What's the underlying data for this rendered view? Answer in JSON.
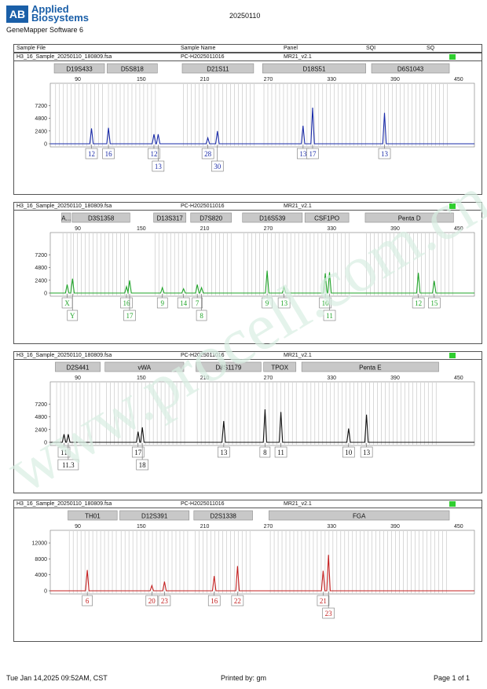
{
  "branding": {
    "logo_mark": "AB",
    "logo_line1": "Applied",
    "logo_line2": "Biosystems",
    "software": "GeneMapper Software 6"
  },
  "run_date": "20250110",
  "table_header": {
    "sample_file": "Sample File",
    "sample_name": "Sample Name",
    "panel": "Panel",
    "sqi": "SQI",
    "sq": "SQ"
  },
  "sample": {
    "file": "H3_16_Sample_20250110_180809.fsa",
    "name": "PC-H2025011016",
    "panel": "MR21_v2.1"
  },
  "footer": {
    "datetime": "Tue Jan 14,2025 09:52AM, CST",
    "printed_by": "Printed by: gm",
    "page": "Page 1 of 1"
  },
  "colors": {
    "blue": "#1a2ba8",
    "green": "#21a52a",
    "black": "#111111",
    "red": "#c42020",
    "qc_pass": "#2fce2f",
    "bin": "#c9c9c9",
    "marker_bg": "#c8c8c8",
    "watermark": "#d9efe3"
  },
  "watermark": "www.procell.com.cn",
  "chart_data": [
    {
      "type": "line",
      "dye": "blue",
      "x_ticks": [
        90,
        150,
        210,
        270,
        330,
        390,
        450
      ],
      "y_ticks": [
        0,
        2400,
        4800,
        7200
      ],
      "ylim": [
        0,
        9600
      ],
      "markers": [
        {
          "name": "D19S433",
          "from": 67,
          "to": 116
        },
        {
          "name": "D5S818",
          "from": 117,
          "to": 166
        },
        {
          "name": "D21S11",
          "from": 188,
          "to": 257
        },
        {
          "name": "D18S51",
          "from": 264,
          "to": 363
        },
        {
          "name": "D6S1043",
          "from": 367,
          "to": 442
        }
      ],
      "peaks": [
        {
          "x": 103,
          "y": 2900
        },
        {
          "x": 119,
          "y": 3000
        },
        {
          "x": 162,
          "y": 1800
        },
        {
          "x": 166,
          "y": 1800
        },
        {
          "x": 213,
          "y": 1100
        },
        {
          "x": 222,
          "y": 2400
        },
        {
          "x": 303,
          "y": 3400
        },
        {
          "x": 312,
          "y": 6800
        },
        {
          "x": 380,
          "y": 5800
        }
      ],
      "labels": [
        {
          "text": "12",
          "x": 103,
          "row": 0
        },
        {
          "text": "16",
          "x": 119,
          "row": 0
        },
        {
          "text": "12",
          "x": 162,
          "row": 0
        },
        {
          "text": "13",
          "x": 166,
          "row": 1
        },
        {
          "text": "28",
          "x": 213,
          "row": 0
        },
        {
          "text": "30",
          "x": 222,
          "row": 1
        },
        {
          "text": "13",
          "x": 303,
          "row": 0
        },
        {
          "text": "17",
          "x": 312,
          "row": 0
        },
        {
          "text": "13",
          "x": 380,
          "row": 0
        }
      ]
    },
    {
      "type": "line",
      "dye": "green",
      "x_ticks": [
        90,
        150,
        210,
        270,
        330,
        390,
        450
      ],
      "y_ticks": [
        0,
        2400,
        4800,
        7200
      ],
      "ylim": [
        0,
        9600
      ],
      "markers": [
        {
          "name": "A...",
          "from": 74,
          "to": 84
        },
        {
          "name": "D3S1358",
          "from": 84,
          "to": 140
        },
        {
          "name": "D13S317",
          "from": 161,
          "to": 193
        },
        {
          "name": "D7S820",
          "from": 196,
          "to": 236
        },
        {
          "name": "D16S539",
          "from": 245,
          "to": 303
        },
        {
          "name": "CSF1PO",
          "from": 304,
          "to": 347
        },
        {
          "name": "Penta D",
          "from": 361,
          "to": 446
        }
      ],
      "peaks": [
        {
          "x": 80,
          "y": 1600
        },
        {
          "x": 85,
          "y": 2700
        },
        {
          "x": 136,
          "y": 1200
        },
        {
          "x": 139,
          "y": 2400
        },
        {
          "x": 170,
          "y": 1000
        },
        {
          "x": 190,
          "y": 800
        },
        {
          "x": 203,
          "y": 1600
        },
        {
          "x": 207,
          "y": 1000
        },
        {
          "x": 269,
          "y": 4200
        },
        {
          "x": 285,
          "y": 1100
        },
        {
          "x": 324,
          "y": 3700
        },
        {
          "x": 328,
          "y": 3900
        },
        {
          "x": 412,
          "y": 3800
        },
        {
          "x": 427,
          "y": 2300
        }
      ],
      "labels": [
        {
          "text": "X",
          "x": 80,
          "row": 0
        },
        {
          "text": "Y",
          "x": 85,
          "row": 1
        },
        {
          "text": "16",
          "x": 136,
          "row": 0
        },
        {
          "text": "17",
          "x": 139,
          "row": 1
        },
        {
          "text": "9",
          "x": 170,
          "row": 0
        },
        {
          "text": "14",
          "x": 190,
          "row": 0
        },
        {
          "text": "7",
          "x": 203,
          "row": 0
        },
        {
          "text": "8",
          "x": 207,
          "row": 1
        },
        {
          "text": "9",
          "x": 269,
          "row": 0
        },
        {
          "text": "13",
          "x": 285,
          "row": 0
        },
        {
          "text": "10",
          "x": 324,
          "row": 0
        },
        {
          "text": "11",
          "x": 328,
          "row": 1
        },
        {
          "text": "12",
          "x": 412,
          "row": 0
        },
        {
          "text": "15",
          "x": 427,
          "row": 0
        }
      ]
    },
    {
      "type": "line",
      "dye": "black",
      "x_ticks": [
        90,
        150,
        210,
        270,
        330,
        390,
        450
      ],
      "y_ticks": [
        0,
        2400,
        4800,
        7200
      ],
      "ylim": [
        0,
        9600
      ],
      "markers": [
        {
          "name": "D2S441",
          "from": 68,
          "to": 112
        },
        {
          "name": "vWA",
          "from": 115,
          "to": 191
        },
        {
          "name": "D8S1179",
          "from": 201,
          "to": 264
        },
        {
          "name": "TPOX",
          "from": 265,
          "to": 297
        },
        {
          "name": "Penta E",
          "from": 301,
          "to": 432
        }
      ],
      "peaks": [
        {
          "x": 77,
          "y": 1500
        },
        {
          "x": 81,
          "y": 1500
        },
        {
          "x": 147,
          "y": 2000
        },
        {
          "x": 151,
          "y": 2800
        },
        {
          "x": 228,
          "y": 4000
        },
        {
          "x": 267,
          "y": 6200
        },
        {
          "x": 282,
          "y": 5700
        },
        {
          "x": 346,
          "y": 2600
        },
        {
          "x": 363,
          "y": 5200
        }
      ],
      "labels": [
        {
          "text": "11",
          "x": 77,
          "row": 0
        },
        {
          "text": "11.3",
          "x": 81,
          "row": 1
        },
        {
          "text": "17",
          "x": 147,
          "row": 0
        },
        {
          "text": "18",
          "x": 151,
          "row": 1
        },
        {
          "text": "13",
          "x": 228,
          "row": 0
        },
        {
          "text": "8",
          "x": 267,
          "row": 0
        },
        {
          "text": "11",
          "x": 282,
          "row": 0
        },
        {
          "text": "10",
          "x": 346,
          "row": 0
        },
        {
          "text": "13",
          "x": 363,
          "row": 0
        }
      ]
    },
    {
      "type": "line",
      "dye": "red",
      "x_ticks": [
        90,
        150,
        210,
        270,
        330,
        390,
        450
      ],
      "y_ticks": [
        0,
        4000,
        8000,
        12000
      ],
      "ylim": [
        0,
        12800
      ],
      "markers": [
        {
          "name": "TH01",
          "from": 80,
          "to": 128
        },
        {
          "name": "D12S391",
          "from": 129,
          "to": 196
        },
        {
          "name": "D2S1338",
          "from": 199,
          "to": 256
        },
        {
          "name": "FGA",
          "from": 270,
          "to": 442
        }
      ],
      "peaks": [
        {
          "x": 99,
          "y": 5200
        },
        {
          "x": 160,
          "y": 1300
        },
        {
          "x": 172,
          "y": 2300
        },
        {
          "x": 219,
          "y": 3700
        },
        {
          "x": 241,
          "y": 6200
        },
        {
          "x": 322,
          "y": 5000
        },
        {
          "x": 327,
          "y": 9000
        }
      ],
      "labels": [
        {
          "text": "6",
          "x": 99,
          "row": 0
        },
        {
          "text": "20",
          "x": 160,
          "row": 0
        },
        {
          "text": "23",
          "x": 172,
          "row": 0
        },
        {
          "text": "16",
          "x": 219,
          "row": 0
        },
        {
          "text": "22",
          "x": 241,
          "row": 0
        },
        {
          "text": "21",
          "x": 322,
          "row": 0
        },
        {
          "text": "23",
          "x": 327,
          "row": 1
        }
      ]
    }
  ]
}
